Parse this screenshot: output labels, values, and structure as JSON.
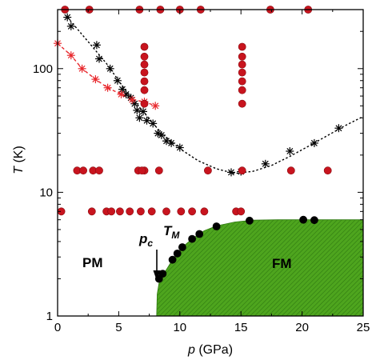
{
  "chart_data": {
    "type": "scatter",
    "title": "",
    "xlabel": {
      "var": "p",
      "unit": "(GPa)"
    },
    "ylabel": {
      "var": "T",
      "unit": "(K)"
    },
    "xlim": [
      0,
      25
    ],
    "ylim": [
      1,
      300
    ],
    "yscale": "log",
    "x_ticks": [
      "0",
      "5",
      "10",
      "15",
      "20",
      "25"
    ],
    "y_ticks": [
      "1",
      "10",
      "100"
    ],
    "grid": false,
    "regions": {
      "pm": "PM",
      "fm": "FM"
    },
    "annotations": {
      "pc": "p",
      "pc_sub": "c",
      "tm": "T",
      "tm_sub": "M"
    },
    "colors": {
      "black": "#000000",
      "red": "#e8282d",
      "red_marker": "#c8141e",
      "fm_fill": "#4ea51e"
    },
    "series": [
      {
        "marker": "star",
        "color": "#000000",
        "line": "none",
        "points": [
          [
            0.8,
            260
          ],
          [
            1.1,
            220
          ],
          [
            3.2,
            155
          ],
          [
            3.4,
            120
          ],
          [
            4.3,
            100
          ],
          [
            4.9,
            80
          ],
          [
            5.3,
            68
          ],
          [
            5.6,
            62
          ],
          [
            6.0,
            58
          ],
          [
            6.3,
            52
          ],
          [
            6.5,
            46
          ],
          [
            6.7,
            40
          ],
          [
            7.0,
            45
          ],
          [
            7.3,
            38
          ],
          [
            7.8,
            36
          ],
          [
            8.2,
            30
          ],
          [
            8.5,
            29
          ],
          [
            8.9,
            26
          ],
          [
            9.3,
            25
          ],
          [
            10.0,
            23
          ],
          [
            14.2,
            14.5
          ],
          [
            15.0,
            14.7
          ],
          [
            17.0,
            17
          ],
          [
            19.0,
            21.5
          ],
          [
            21.0,
            25
          ],
          [
            23.0,
            33
          ]
        ]
      },
      {
        "marker": "star",
        "color": "#e8282d",
        "line": "none",
        "points": [
          [
            0.0,
            160
          ],
          [
            1.1,
            128
          ],
          [
            2.0,
            100
          ],
          [
            3.1,
            82
          ],
          [
            4.1,
            70
          ],
          [
            5.2,
            62
          ],
          [
            6.1,
            56
          ],
          [
            7.1,
            54
          ],
          [
            8.0,
            50
          ]
        ]
      },
      {
        "marker": "circle",
        "color": "#c8141e",
        "line": "none",
        "points": [
          [
            0.6,
            300
          ],
          [
            2.6,
            300
          ],
          [
            6.7,
            300
          ],
          [
            8.4,
            300
          ],
          [
            10.0,
            300
          ],
          [
            11.7,
            300
          ],
          [
            17.4,
            300
          ],
          [
            20.5,
            300
          ],
          [
            7.1,
            150
          ],
          [
            7.1,
            125
          ],
          [
            7.1,
            108
          ],
          [
            7.1,
            93
          ],
          [
            7.1,
            79
          ],
          [
            7.1,
            67
          ],
          [
            7.1,
            52
          ],
          [
            7.1,
            15
          ],
          [
            15.1,
            150
          ],
          [
            15.1,
            125
          ],
          [
            15.1,
            108
          ],
          [
            15.1,
            93
          ],
          [
            15.1,
            79
          ],
          [
            15.1,
            67
          ],
          [
            15.1,
            52
          ],
          [
            15.1,
            15
          ],
          [
            1.6,
            15
          ],
          [
            2.1,
            15
          ],
          [
            2.9,
            15
          ],
          [
            3.4,
            15
          ],
          [
            6.6,
            15
          ],
          [
            6.9,
            15
          ],
          [
            8.3,
            15
          ],
          [
            12.3,
            15
          ],
          [
            19.1,
            15
          ],
          [
            22.1,
            15
          ],
          [
            0.3,
            7
          ],
          [
            2.8,
            7
          ],
          [
            4.0,
            7
          ],
          [
            4.4,
            7
          ],
          [
            5.1,
            7
          ],
          [
            5.9,
            7
          ],
          [
            6.8,
            7
          ],
          [
            7.7,
            7
          ],
          [
            8.9,
            7
          ],
          [
            10.1,
            7
          ],
          [
            11.0,
            7
          ],
          [
            12.0,
            7
          ],
          [
            14.6,
            7
          ],
          [
            15.0,
            7
          ]
        ]
      },
      {
        "marker": "circle",
        "color": "#000000",
        "line": "none",
        "points": [
          [
            8.3,
            2.0
          ],
          [
            8.6,
            2.2
          ],
          [
            9.4,
            2.85
          ],
          [
            9.8,
            3.2
          ],
          [
            10.2,
            3.6
          ],
          [
            11.0,
            4.2
          ],
          [
            11.6,
            4.6
          ],
          [
            13.0,
            5.3
          ],
          [
            15.7,
            5.9
          ],
          [
            20.1,
            6.0
          ],
          [
            21.0,
            5.95
          ]
        ]
      }
    ],
    "guide_curves": [
      {
        "style": "dotted",
        "points": [
          [
            0.8,
            260
          ],
          [
            2.5,
            165
          ],
          [
            4.0,
            110
          ],
          [
            5.5,
            68
          ],
          [
            7.0,
            45
          ],
          [
            8.5,
            30
          ],
          [
            10.0,
            22.5
          ],
          [
            11.5,
            18
          ],
          [
            13.0,
            15.5
          ],
          [
            14.5,
            14.2
          ],
          [
            16.0,
            14.8
          ],
          [
            17.5,
            16.5
          ],
          [
            19.0,
            19.5
          ],
          [
            20.5,
            23.5
          ],
          [
            22.0,
            28.5
          ],
          [
            23.5,
            34.5
          ],
          [
            25.0,
            41
          ]
        ]
      },
      {
        "style": "dashed",
        "points": [
          [
            0.0,
            160
          ],
          [
            1.1,
            128
          ],
          [
            2.0,
            100
          ],
          [
            3.1,
            82
          ],
          [
            4.1,
            70
          ],
          [
            5.2,
            62
          ],
          [
            6.1,
            56
          ],
          [
            7.1,
            54
          ],
          [
            8.0,
            50
          ]
        ]
      }
    ],
    "fm_boundary": [
      [
        8.1,
        1.0
      ],
      [
        8.15,
        1.5
      ],
      [
        8.3,
        1.85
      ],
      [
        8.7,
        2.2
      ],
      [
        9.4,
        2.85
      ],
      [
        10.2,
        3.6
      ],
      [
        11.0,
        4.2
      ],
      [
        12.0,
        4.9
      ],
      [
        13.0,
        5.35
      ],
      [
        14.5,
        5.75
      ],
      [
        16.0,
        5.95
      ],
      [
        18.0,
        6.0
      ],
      [
        25.0,
        6.0
      ],
      [
        25.0,
        1.0
      ]
    ]
  }
}
